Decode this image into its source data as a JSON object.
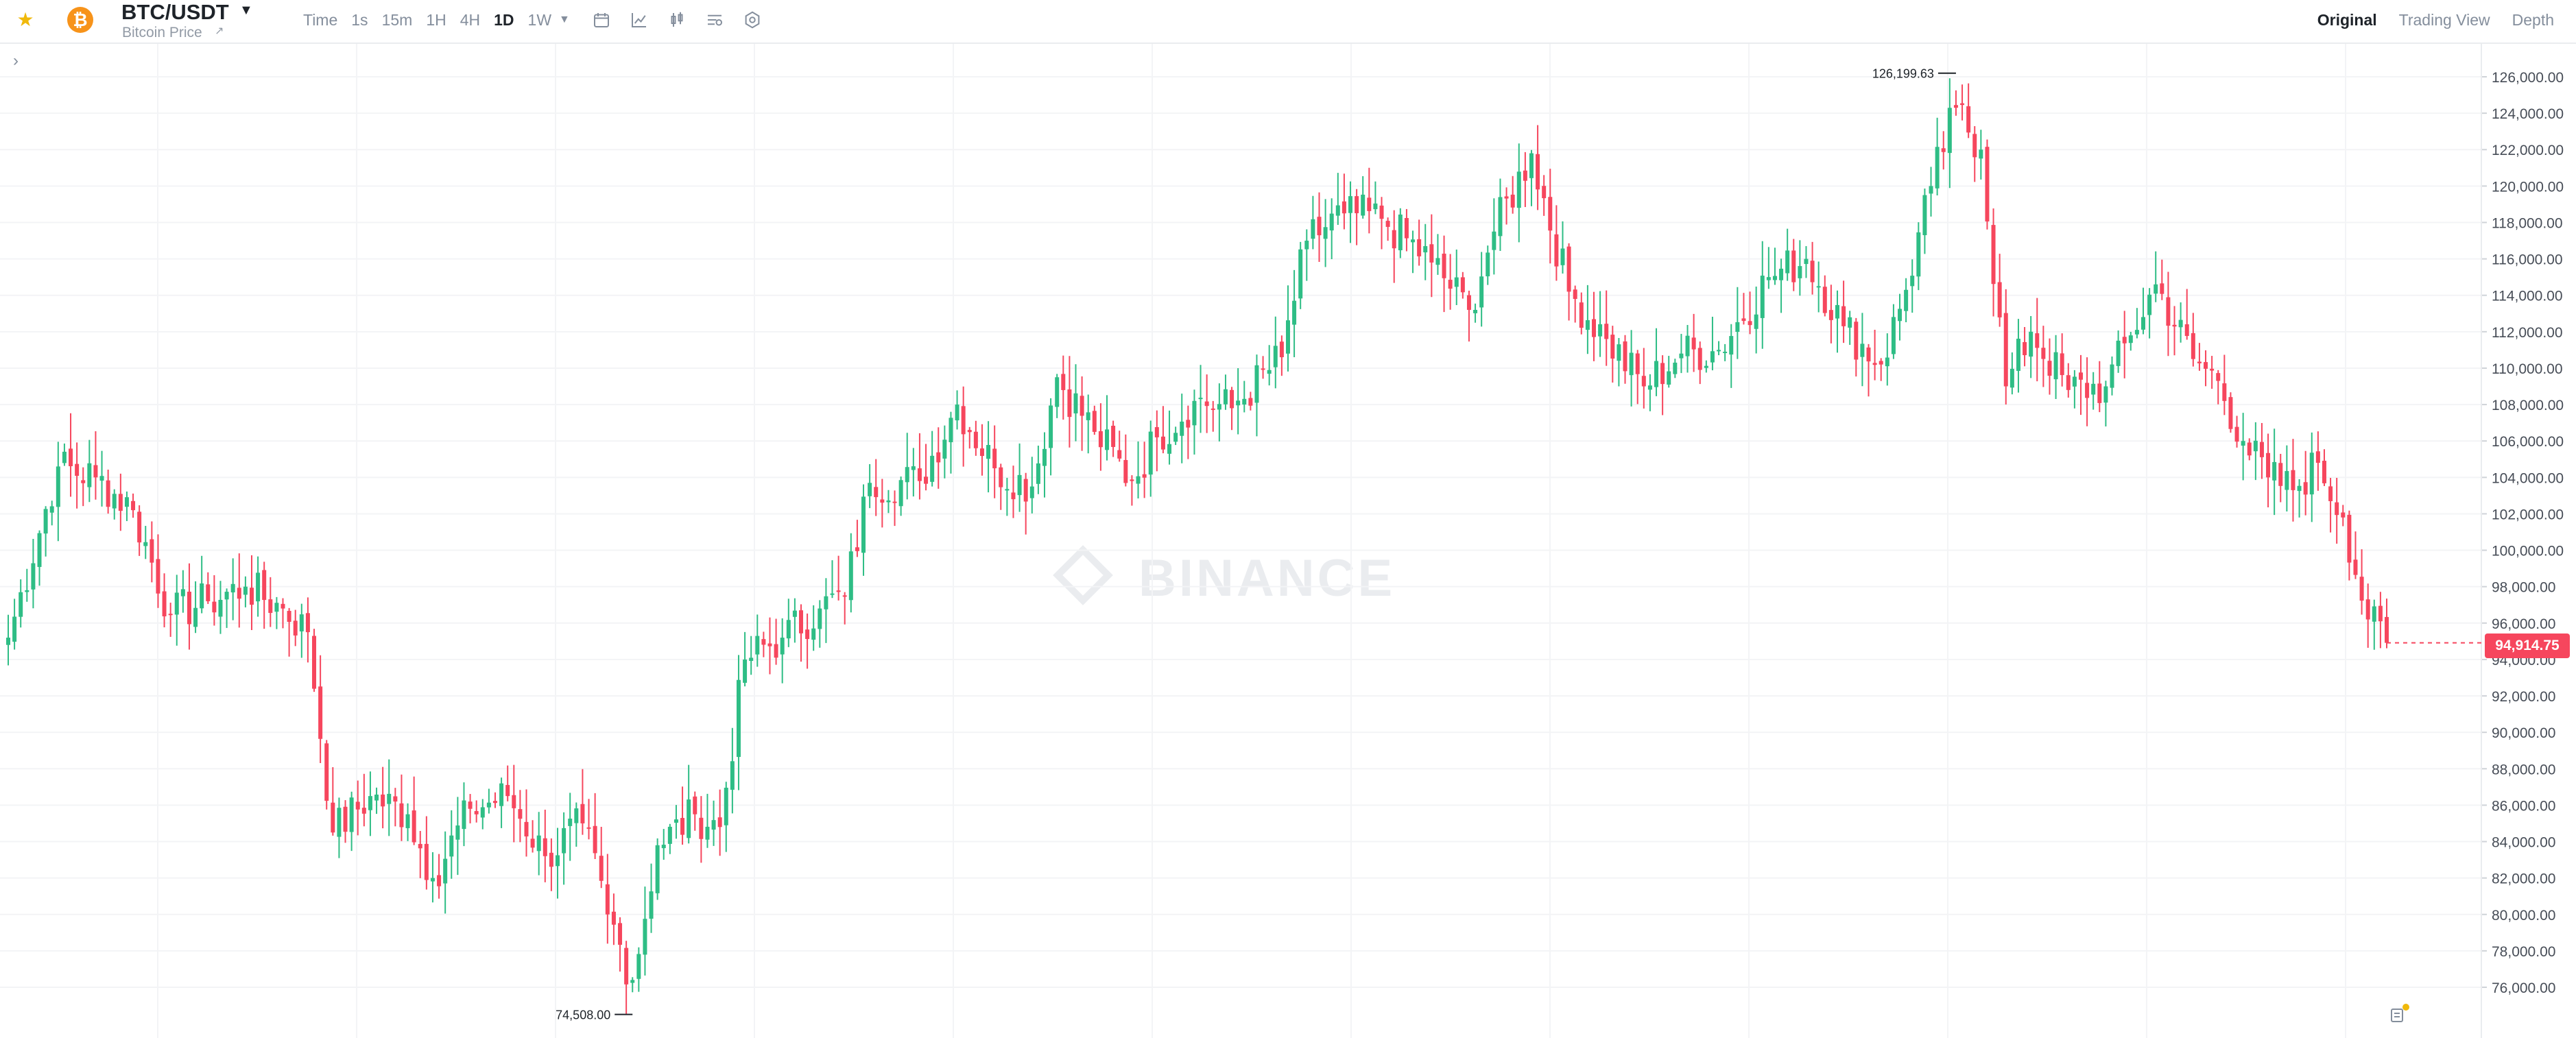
{
  "header": {
    "pair": "BTC/USDT",
    "subtitle": "Bitcoin Price",
    "favorite_icon": "star-icon",
    "coin_icon_glyph": "₿",
    "intervals": [
      "Time",
      "1s",
      "15m",
      "1H",
      "4H",
      "1D",
      "1W"
    ],
    "active_interval": "1D",
    "tool_icons": [
      "calendar-icon",
      "line-chart-icon",
      "candle-style-icon",
      "indicator-settings-icon",
      "settings-gear-icon"
    ],
    "view_tabs": [
      "Original",
      "Trading View",
      "Depth"
    ],
    "active_view": "Original"
  },
  "chart": {
    "watermark": "BINANCE",
    "current_price": "94,914.75",
    "high_label": "126,199.63",
    "low_label": "74,508.00",
    "y_ticks": [
      "126,000.00",
      "124,000.00",
      "122,000.00",
      "120,000.00",
      "118,000.00",
      "116,000.00",
      "114,000.00",
      "112,000.00",
      "110,000.00",
      "108,000.00",
      "106,000.00",
      "104,000.00",
      "102,000.00",
      "100,000.00",
      "98,000.00",
      "96,000.00",
      "94,000.00",
      "92,000.00",
      "90,000.00",
      "88,000.00",
      "86,000.00",
      "84,000.00",
      "82,000.00",
      "80,000.00",
      "78,000.00",
      "76,000.00"
    ],
    "colors": {
      "up": "#2ebd85",
      "down": "#f6465d",
      "grid": "#f3f4f6",
      "axis_text": "#474d57"
    }
  },
  "chart_data": {
    "type": "candlestick",
    "title": "BTC/USDT",
    "interval": "1D",
    "ylim": [
      74000,
      128000
    ],
    "grid": true,
    "last_price": 94914.75,
    "high": 126199.63,
    "low": 74508.0,
    "anchors": [
      [
        0,
        95200
      ],
      [
        8,
        104600
      ],
      [
        14,
        104000
      ],
      [
        20,
        102200
      ],
      [
        26,
        96500
      ],
      [
        32,
        97200
      ],
      [
        38,
        98000
      ],
      [
        44,
        96800
      ],
      [
        48,
        95500
      ],
      [
        52,
        84500
      ],
      [
        58,
        86500
      ],
      [
        64,
        85500
      ],
      [
        68,
        82000
      ],
      [
        74,
        85800
      ],
      [
        80,
        86500
      ],
      [
        86,
        83200
      ],
      [
        92,
        85000
      ],
      [
        96,
        80000
      ],
      [
        100,
        76400
      ],
      [
        104,
        83800
      ],
      [
        110,
        85500
      ],
      [
        114,
        84800
      ],
      [
        118,
        94000
      ],
      [
        124,
        95200
      ],
      [
        130,
        96800
      ],
      [
        134,
        97500
      ],
      [
        138,
        103700
      ],
      [
        146,
        103800
      ],
      [
        152,
        108000
      ],
      [
        158,
        104500
      ],
      [
        164,
        103500
      ],
      [
        168,
        109500
      ],
      [
        174,
        106500
      ],
      [
        180,
        103800
      ],
      [
        184,
        106200
      ],
      [
        190,
        108200
      ],
      [
        196,
        107800
      ],
      [
        204,
        110600
      ],
      [
        208,
        117000
      ],
      [
        214,
        118500
      ],
      [
        220,
        118200
      ],
      [
        228,
        115800
      ],
      [
        234,
        113200
      ],
      [
        238,
        117500
      ],
      [
        244,
        121800
      ],
      [
        250,
        114200
      ],
      [
        256,
        111600
      ],
      [
        262,
        109000
      ],
      [
        268,
        110800
      ],
      [
        274,
        111000
      ],
      [
        282,
        115000
      ],
      [
        288,
        116000
      ],
      [
        294,
        112300
      ],
      [
        300,
        110200
      ],
      [
        304,
        114300
      ],
      [
        308,
        120000
      ],
      [
        312,
        124300
      ],
      [
        316,
        122000
      ],
      [
        320,
        109000
      ],
      [
        324,
        112000
      ],
      [
        330,
        108800
      ],
      [
        336,
        109000
      ],
      [
        340,
        111800
      ],
      [
        344,
        114600
      ],
      [
        350,
        110500
      ],
      [
        354,
        109300
      ],
      [
        358,
        106000
      ],
      [
        362,
        104000
      ],
      [
        366,
        103300
      ],
      [
        370,
        104800
      ],
      [
        374,
        101800
      ],
      [
        378,
        96200
      ],
      [
        381,
        94915
      ]
    ]
  }
}
